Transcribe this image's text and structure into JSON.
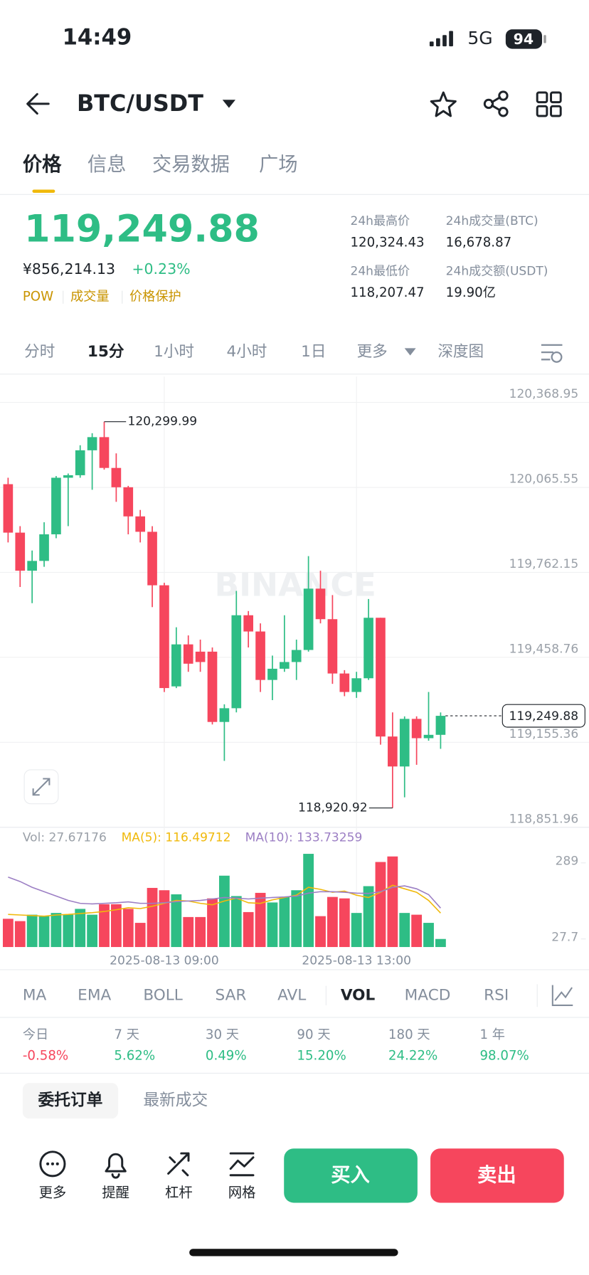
{
  "status_bar": {
    "time": "14:49",
    "network": "5G",
    "battery": "94"
  },
  "header": {
    "pair": "BTC/USDT"
  },
  "tabs": [
    "价格",
    "信息",
    "交易数据",
    "广场"
  ],
  "summary": {
    "price": "119,249.88",
    "cny_price": "¥856,214.13",
    "change": "+0.23%",
    "tags": [
      "POW",
      "成交量",
      "价格保护"
    ],
    "stats": [
      {
        "label": "24h最高价",
        "value": "120,324.43"
      },
      {
        "label": "24h成交量(BTC)",
        "value": "16,678.87"
      },
      {
        "label": "24h最低价",
        "value": "118,207.47"
      },
      {
        "label": "24h成交额(USDT)",
        "value": "19.90亿"
      }
    ]
  },
  "intervals": [
    "分时",
    "15分",
    "1小时",
    "4小时",
    "1日",
    "更多",
    "深度图"
  ],
  "chart_data": {
    "type": "candlestick",
    "watermark": "BINANCE",
    "x": [
      null,
      null,
      null,
      null,
      null,
      null,
      null,
      null,
      null,
      null,
      null,
      null,
      null,
      "2025-08-13 09:00",
      null,
      null,
      null,
      null,
      null,
      null,
      null,
      null,
      null,
      null,
      null,
      null,
      null,
      null,
      null,
      "2025-08-13 13:00",
      null,
      null,
      null,
      null,
      null,
      null,
      null
    ],
    "open": [
      120077,
      119904,
      119768,
      119803,
      119898,
      120100,
      120109,
      120198,
      120245,
      120135,
      120066,
      119962,
      119907,
      119716,
      119355,
      119505,
      119479,
      119479,
      119228,
      119277,
      119609,
      119551,
      119378,
      119418,
      119442,
      119485,
      119704,
      119595,
      119401,
      119335,
      119384,
      119600,
      119176,
      119069,
      119239,
      119170,
      119182
    ],
    "high": [
      120100,
      119927,
      119840,
      119941,
      120106,
      120115,
      120216,
      120259,
      120299.99,
      120187,
      120071,
      119985,
      119927,
      119725,
      119566,
      119537,
      119522,
      119494,
      119291,
      119696,
      119624,
      119580,
      119465,
      119609,
      119522,
      119820,
      119768,
      119681,
      119413,
      119407,
      119667,
      119600,
      119262,
      119248,
      119248,
      119335,
      119262
    ],
    "low": [
      119869,
      119710,
      119652,
      119782,
      119884,
      119927,
      120100,
      120057,
      120129,
      120014,
      119898,
      119869,
      119638,
      119335,
      119349,
      119407,
      119407,
      119219,
      119089,
      119262,
      119494,
      119335,
      119306,
      119407,
      119378,
      119479,
      119580,
      119364,
      119320,
      119314,
      119378,
      119147,
      118920.92,
      118959,
      119075,
      119161,
      119132
    ],
    "close": [
      119904,
      119768,
      119803,
      119898,
      120100,
      120109,
      120198,
      120245,
      120135,
      120066,
      119962,
      119907,
      119716,
      119349,
      119505,
      119436,
      119442,
      119228,
      119277,
      119609,
      119551,
      119378,
      119418,
      119442,
      119485,
      119704,
      119595,
      119401,
      119335,
      119384,
      119600,
      119176,
      119069,
      119239,
      119170,
      119182,
      119249.88
    ],
    "volume": [
      97,
      89,
      111,
      106,
      117,
      111,
      131,
      111,
      147,
      147,
      131,
      83,
      203,
      195,
      181,
      103,
      103,
      167,
      245,
      175,
      120,
      186,
      153,
      172,
      195,
      320,
      106,
      172,
      167,
      117,
      209,
      292,
      311,
      117,
      111,
      83,
      27.67176
    ],
    "up_color": "#2ebd85",
    "down_color": "#f6465d",
    "ylim": [
      118851.96,
      120461.4
    ],
    "yticks": [
      {
        "value": 118851.96,
        "label": "118,851.96"
      },
      {
        "value": 119155.36,
        "label": "119,155.36"
      },
      {
        "value": 119458.76,
        "label": "119,458.76"
      },
      {
        "value": 119762.15,
        "label": "119,762.15"
      },
      {
        "value": 120065.55,
        "label": "120,065.55"
      },
      {
        "value": 120368.95,
        "label": "120,368.95"
      }
    ],
    "y2lim": [
      0,
      389
    ],
    "y2ticks": [
      27.7,
      289
    ],
    "last_price": {
      "value": 119249.88,
      "label": "119,249.88"
    },
    "high_label": {
      "value": 120299.99,
      "label": "120,299.99"
    },
    "low_label": {
      "value": 118920.92,
      "label": "118,920.92"
    },
    "volume_legend": "Vol: 27.67176",
    "ma_series": [
      {
        "name": "MA(5): 116.49712",
        "color": "#f0b90b",
        "values": [
          112,
          110,
          108,
          106,
          110,
          112,
          115,
          118,
          122,
          128,
          135,
          132,
          140,
          150,
          160,
          158,
          150,
          145,
          158,
          168,
          152,
          150,
          162,
          170,
          178,
          205,
          198,
          188,
          192,
          178,
          170,
          188,
          212,
          200,
          188,
          160,
          116.49712
        ]
      },
      {
        "name": "MA(10): 133.73259",
        "color": "#9c7fc4",
        "values": [
          240,
          225,
          205,
          190,
          175,
          160,
          150,
          148,
          150,
          152,
          155,
          150,
          150,
          152,
          156,
          158,
          160,
          165,
          170,
          168,
          165,
          168,
          170,
          172,
          175,
          185,
          190,
          190,
          188,
          185,
          184,
          190,
          205,
          210,
          200,
          180,
          133.73259
        ]
      }
    ],
    "grid": true
  },
  "indicators": [
    "MA",
    "EMA",
    "BOLL",
    "SAR",
    "AVL",
    "VOL",
    "MACD",
    "RSI"
  ],
  "performance": [
    {
      "label": "今日",
      "value": "-0.58%"
    },
    {
      "label": "7 天",
      "value": "5.62%"
    },
    {
      "label": "30 天",
      "value": "0.49%"
    },
    {
      "label": "90 天",
      "value": "15.20%"
    },
    {
      "label": "180 天",
      "value": "24.22%"
    },
    {
      "label": "1 年",
      "value": "98.07%"
    }
  ],
  "order_tabs": [
    "委托订单",
    "最新成交"
  ],
  "bottom_nav": [
    "更多",
    "提醒",
    "杠杆",
    "网格"
  ],
  "actions": {
    "buy": "买入",
    "sell": "卖出"
  }
}
